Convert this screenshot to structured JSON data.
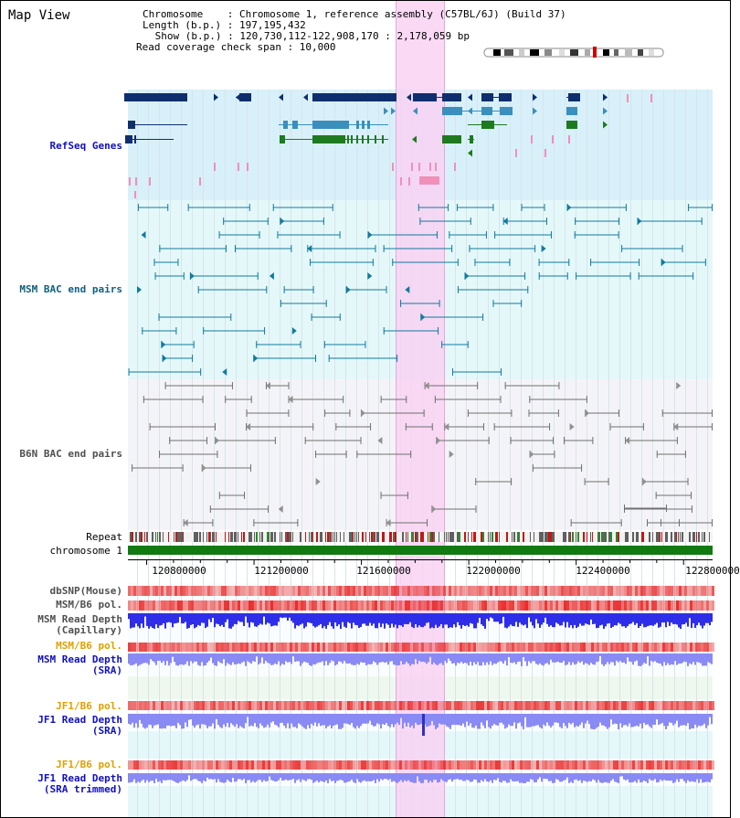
{
  "app_title": "Map View",
  "info": {
    "chromosome": "Chromosome    : Chromosome 1, reference assembly (C57BL/6J) (Build 37)",
    "length": "Length (b.p.) : 197,195,432",
    "show": " Show (b.p.) : 120,730,112-122,908,170 : 2,178,059 bp",
    "read_coverage": "Read coverage check span : 10,000"
  },
  "tracks": {
    "refseq": "RefSeq Genes",
    "msm_bac": "MSM BAC end pairs",
    "b6n_bac": "B6N BAC end pairs",
    "repeat": "Repeat",
    "chromosome": "chromosome 1",
    "dbsnp": "dbSNP(Mouse)",
    "msm_b6_pol": "MSM/B6 pol.",
    "msm_depth_cap_1": "MSM Read Depth",
    "msm_depth_cap_2": "(Capillary)",
    "msm_b6_pol_sra": "MSM/B6 pol.",
    "msm_depth_sra_1": "MSM Read Depth",
    "msm_depth_sra_2": "(SRA)",
    "jf1_b6_pol": "JF1/B6 pol.",
    "jf1_depth_sra_1": "JF1 Read Depth",
    "jf1_depth_sra_2": "(SRA)",
    "jf1_b6_pol_trim": "JF1/B6 pol.",
    "jf1_depth_trim_1": "JF1 Read Depth",
    "jf1_depth_trim_2": "(SRA trimmed)"
  },
  "axis": {
    "ticks": [
      "120800000",
      "121200000",
      "121600000",
      "122000000",
      "122400000",
      "122800000"
    ],
    "tick_values": [
      120800000,
      121200000,
      121600000,
      122000000,
      122400000,
      122800000
    ],
    "range_start": 120730112,
    "range_end": 122908170
  },
  "colors": {
    "refseq_bg": "#d8f0fa",
    "msm_bg": "#e4f8fa",
    "b6n_bg": "#f4f4f8",
    "highlight": "#f8d2f2",
    "gene_dark": "#0f2e6e",
    "gene_mid": "#3b8fbc",
    "gene_green": "#1e7a1e",
    "gene_pink": "#f090b8",
    "msm_line": "#127a9c",
    "b6n_line": "#707070",
    "chrom_green": "#117a11",
    "depth_blue": "#2e2ee8",
    "depth_light": "#8a8af4",
    "label_blue": "#1010c0",
    "label_teal": "#106080",
    "label_gray": "#505050",
    "label_orange": "#e0a000"
  }
}
